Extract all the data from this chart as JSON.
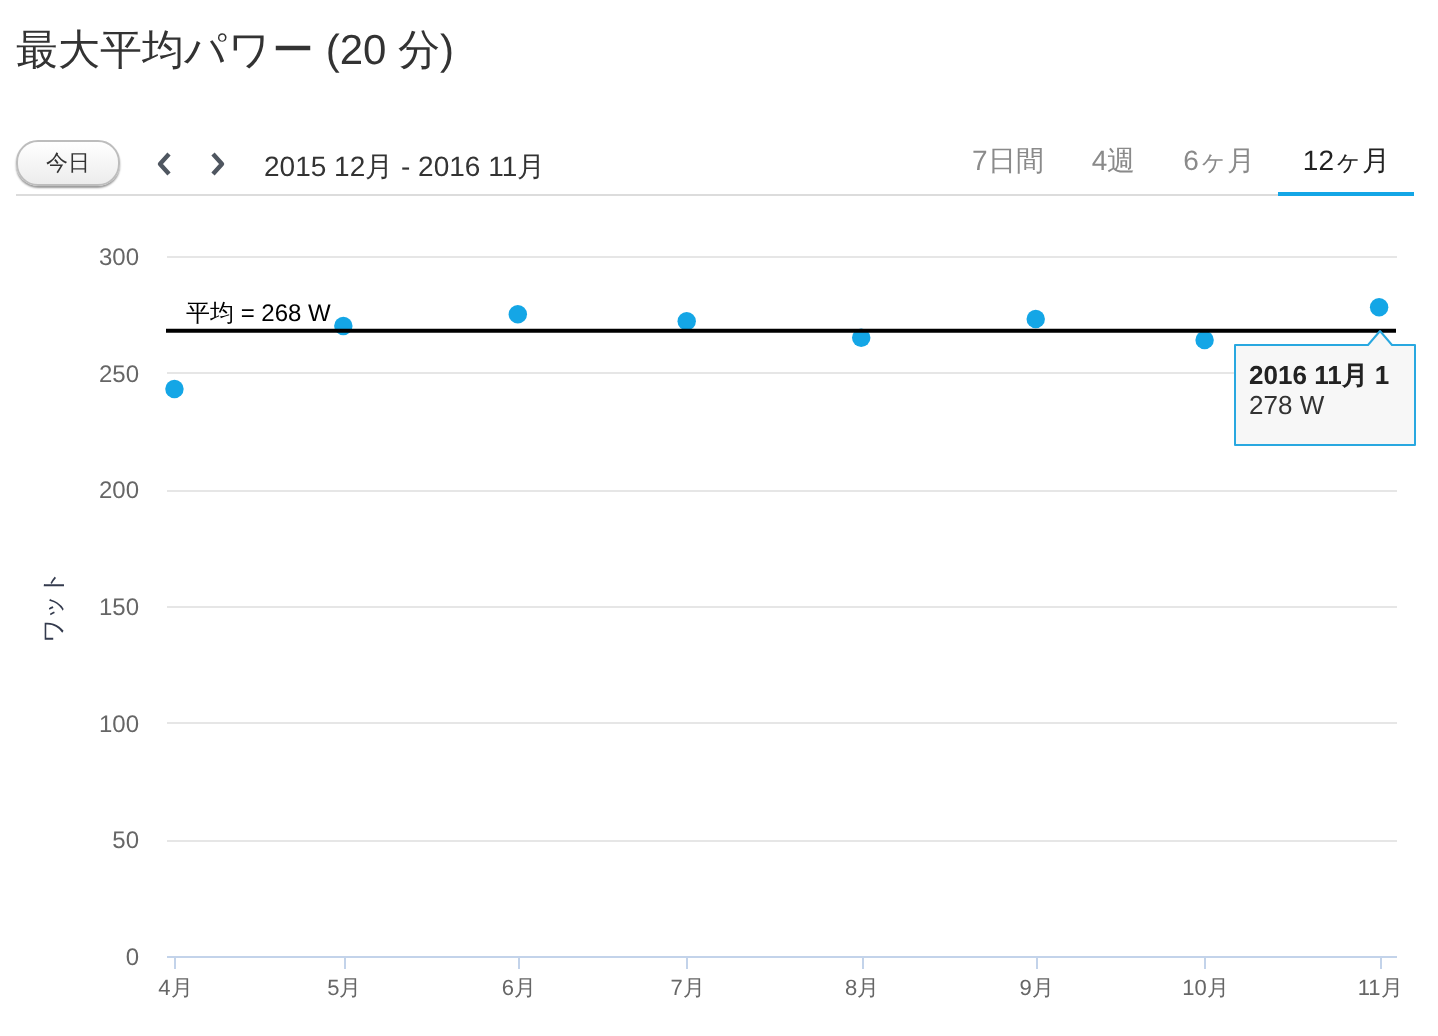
{
  "chart_data": {
    "type": "scatter",
    "title": "最大平均パワー (20 分)",
    "subtitle": "2015 12月 - 2016 11月",
    "ylabel": "ワット",
    "x": [
      "2016-04-01",
      "2016-05-01",
      "2016-06-01",
      "2016-07-01",
      "2016-08-01",
      "2016-09-01",
      "2016-10-01",
      "2016-11-01"
    ],
    "series": [
      {
        "color": "#14a6e6",
        "values": [
          243,
          270,
          275,
          272,
          265,
          273,
          264,
          278
        ]
      }
    ],
    "xlim": [
      "2016-03-30T12:00",
      "2016-11-04"
    ],
    "xticks": [
      {
        "value": "2016-04-01",
        "label": "4月"
      },
      {
        "value": "2016-05-01",
        "label": "5月"
      },
      {
        "value": "2016-06-01",
        "label": "6月"
      },
      {
        "value": "2016-07-01",
        "label": "7月"
      },
      {
        "value": "2016-08-01",
        "label": "8月"
      },
      {
        "value": "2016-09-01",
        "label": "9月"
      },
      {
        "value": "2016-10-01",
        "label": "10月"
      },
      {
        "value": "2016-11-01",
        "label": "11月"
      }
    ],
    "ylim": [
      0,
      300
    ],
    "yticks": [
      0,
      50,
      100,
      150,
      200,
      250,
      300
    ],
    "grid": "y",
    "marker": "circle",
    "ref_lines": [
      {
        "axis": "y",
        "value": 268,
        "label": "平均 = 268 W",
        "color": "#000000"
      }
    ],
    "annotations": [
      "今日",
      "7日間",
      "4週",
      "6ヶ月",
      "12ヶ月",
      {
        "text": "2016 11月 1",
        "x": "2016-11-01",
        "y": 278
      },
      "278 W"
    ]
  }
}
